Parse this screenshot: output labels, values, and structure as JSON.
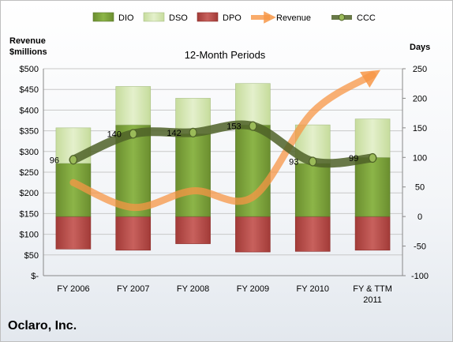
{
  "company": "Oclaro, Inc.",
  "chart_data": {
    "type": "bar",
    "title": "12-Month Periods",
    "categories": [
      "FY 2006",
      "FY 2007",
      "FY 2008",
      "FY 2009",
      "FY 2010",
      "FY & TTM 2011"
    ],
    "left_axis": {
      "label_line1": "Revenue",
      "label_line2": "$millions",
      "ticks": [
        "$-",
        "$50",
        "$100",
        "$150",
        "$200",
        "$250",
        "$300",
        "$350",
        "$400",
        "$450",
        "$500"
      ],
      "range": [
        0,
        500
      ]
    },
    "right_axis": {
      "label": "Days",
      "ticks": [
        "-100",
        "-50",
        "0",
        "50",
        "100",
        "150",
        "200",
        "250"
      ],
      "range": [
        -100,
        250
      ]
    },
    "legend": {
      "placement": "top",
      "entries": [
        "DIO",
        "DSO",
        "DPO",
        "Revenue",
        "CCC"
      ]
    },
    "series": [
      {
        "name": "DIO",
        "axis": "days",
        "values": [
          90,
          155,
          140,
          155,
          90,
          100
        ],
        "color": "#7ba23a"
      },
      {
        "name": "DSO",
        "axis": "days",
        "values": [
          60,
          65,
          60,
          70,
          65,
          65
        ],
        "color": "#d4e7b0"
      },
      {
        "name": "DPO",
        "axis": "days",
        "values": [
          -55,
          -57,
          -46,
          -60,
          -59,
          -57
        ],
        "color": "#c0504d"
      },
      {
        "name": "Revenue",
        "axis": "revenue",
        "values": [
          225,
          165,
          205,
          190,
          395,
          485
        ],
        "color": "#f79646"
      },
      {
        "name": "CCC",
        "axis": "days",
        "values": [
          96,
          140,
          142,
          153,
          93,
          99
        ],
        "color": "#4f6228"
      }
    ],
    "data_labels": [
      "96",
      "140",
      "142",
      "153",
      "93",
      "99"
    ],
    "grid": true
  }
}
